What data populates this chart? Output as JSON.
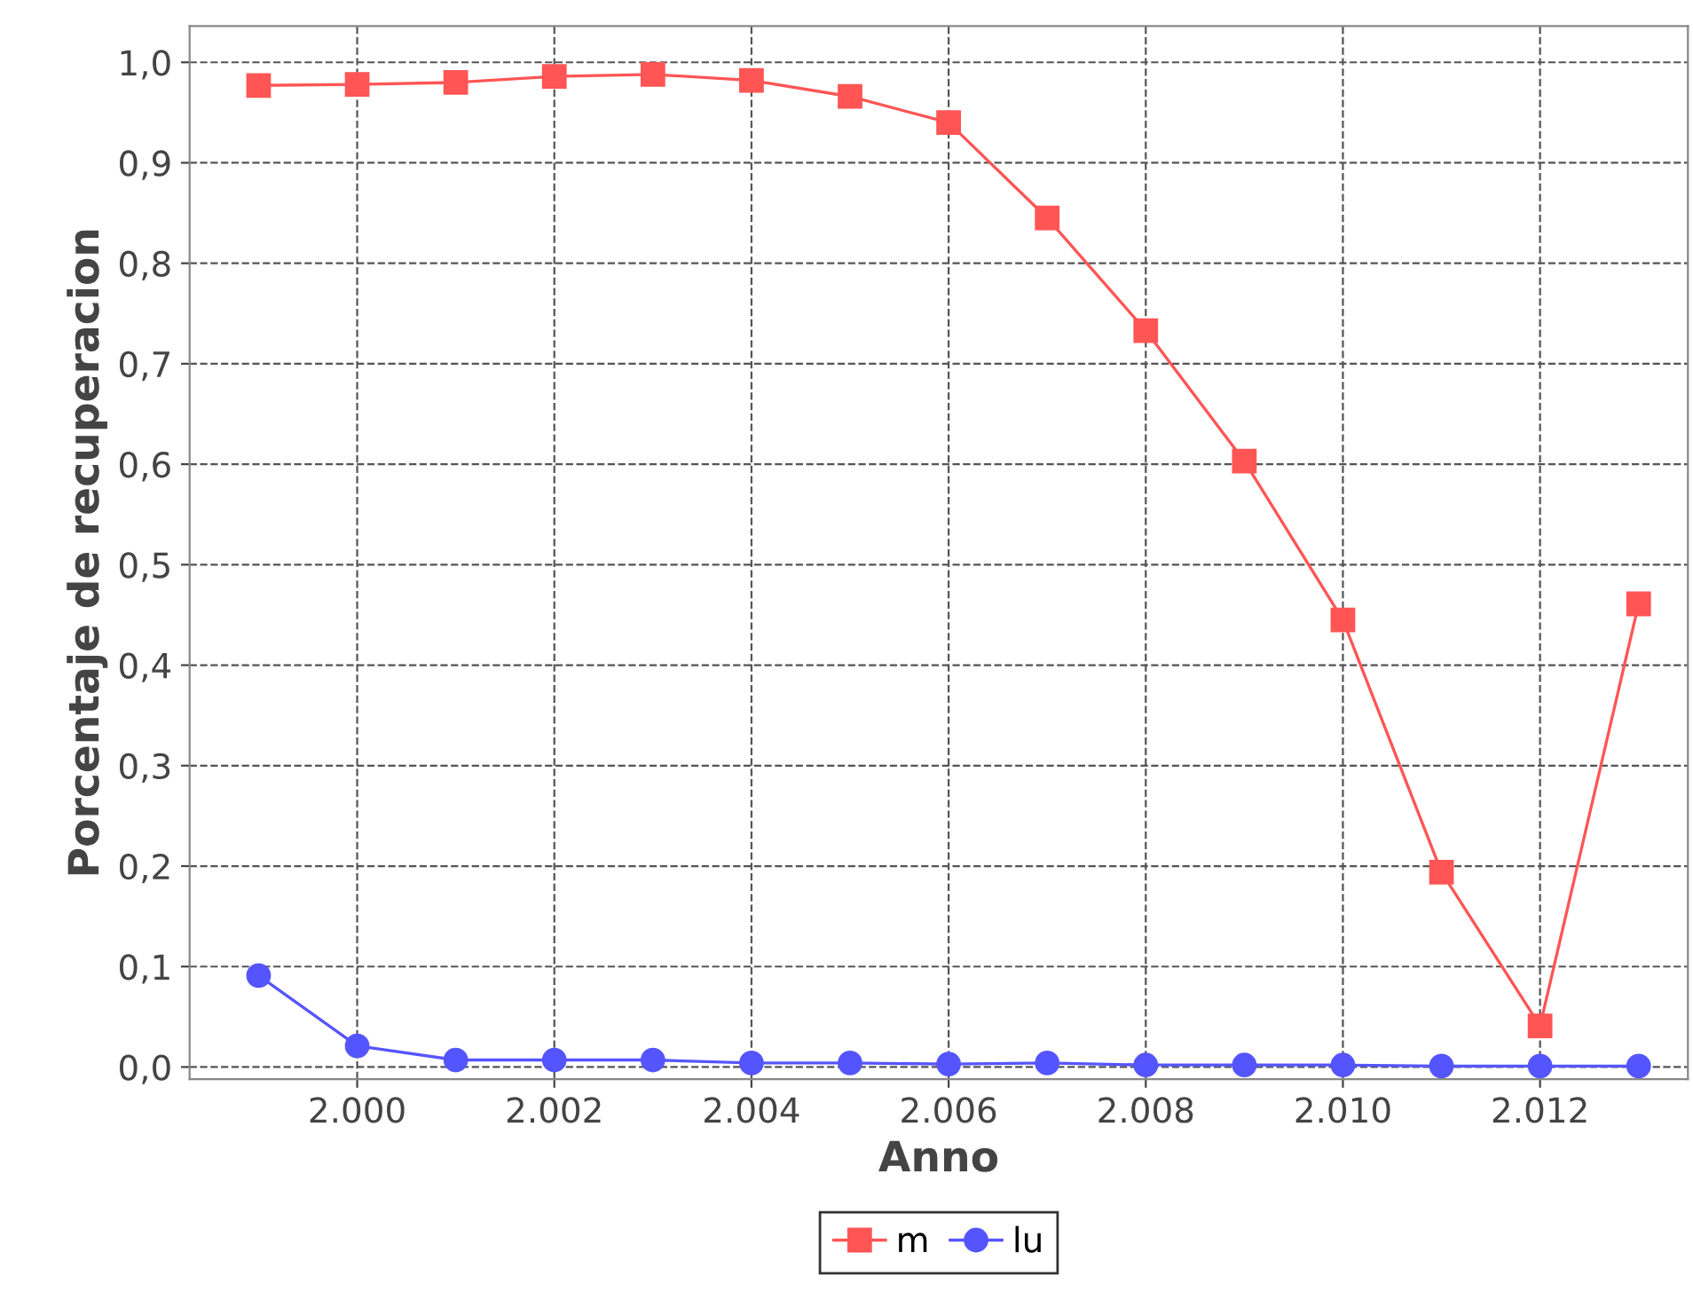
{
  "chart_data": {
    "type": "line",
    "xlabel": "Anno",
    "ylabel": "Porcentaje de recuperacion",
    "x": [
      1999,
      2000,
      2001,
      2002,
      2003,
      2004,
      2005,
      2006,
      2007,
      2008,
      2009,
      2010,
      2011,
      2012,
      2013
    ],
    "series": [
      {
        "name": "m",
        "color": "#ff5555",
        "marker": "square",
        "values": [
          0.977,
          0.978,
          0.98,
          0.986,
          0.988,
          0.982,
          0.966,
          0.94,
          0.845,
          0.733,
          0.603,
          0.445,
          0.194,
          0.041,
          0.461
        ]
      },
      {
        "name": "lu",
        "color": "#5555ff",
        "marker": "circle",
        "values": [
          0.091,
          0.021,
          0.007,
          0.007,
          0.007,
          0.004,
          0.004,
          0.003,
          0.004,
          0.002,
          0.002,
          0.002,
          0.001,
          0.001,
          0.001
        ]
      }
    ],
    "xlim": [
      1998.3,
      2013.5
    ],
    "ylim": [
      -0.012,
      1.036
    ],
    "xticks": [
      {
        "value": 2000,
        "label": "2.000"
      },
      {
        "value": 2002,
        "label": "2.002"
      },
      {
        "value": 2004,
        "label": "2.004"
      },
      {
        "value": 2006,
        "label": "2.006"
      },
      {
        "value": 2008,
        "label": "2.008"
      },
      {
        "value": 2010,
        "label": "2.010"
      },
      {
        "value": 2012,
        "label": "2.012"
      }
    ],
    "yticks": [
      {
        "value": 0,
        "label": "0,0"
      },
      {
        "value": 0.1,
        "label": "0,1"
      },
      {
        "value": 0.2,
        "label": "0,2"
      },
      {
        "value": 0.3,
        "label": "0,3"
      },
      {
        "value": 0.4,
        "label": "0,4"
      },
      {
        "value": 0.5,
        "label": "0,5"
      },
      {
        "value": 0.6,
        "label": "0,6"
      },
      {
        "value": 0.7,
        "label": "0,7"
      },
      {
        "value": 0.8,
        "label": "0,8"
      },
      {
        "value": 0.9,
        "label": "0,9"
      },
      {
        "value": 1.0,
        "label": "1,0"
      }
    ],
    "grid": true,
    "legend": "bottom",
    "line_style": "solid"
  }
}
